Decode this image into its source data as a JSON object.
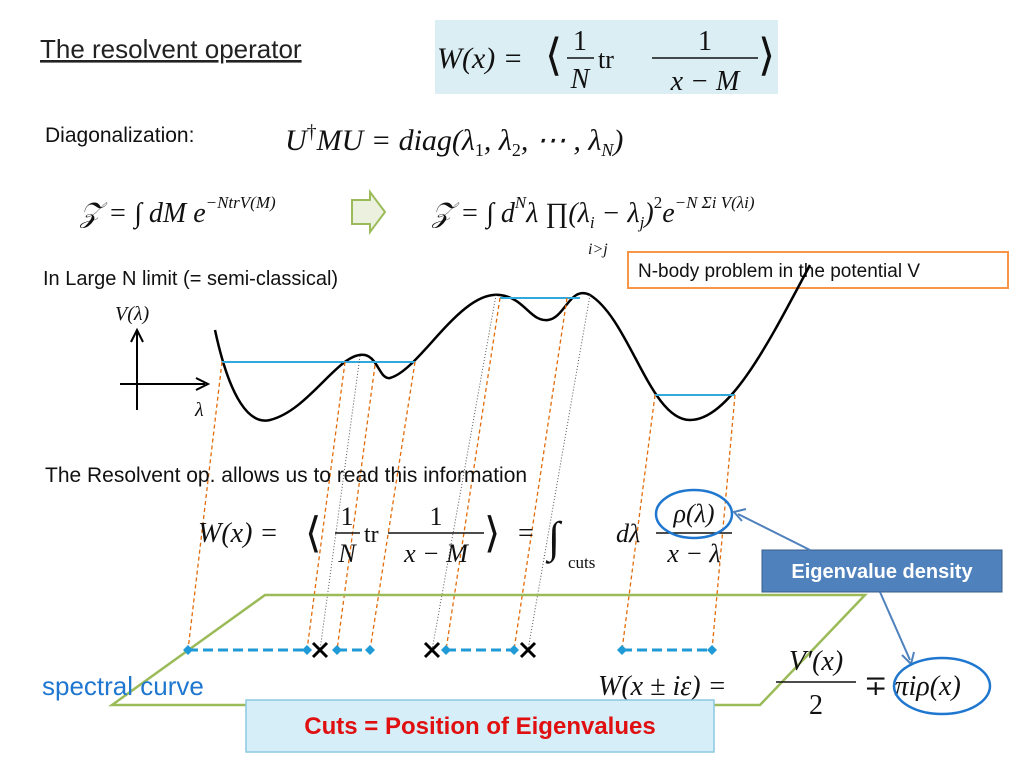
{
  "title": "The resolvent operator",
  "top_formula": {
    "lhs": "W(x) =",
    "open": "⟨",
    "n1": "1",
    "d1": "N",
    "tr": "tr",
    "n2": "1",
    "d2": "x − M",
    "close": "⟩"
  },
  "diagonalization": {
    "label": "Diagonalization:",
    "a": "U",
    "dagger": "†",
    "b": "MU = diag(λ",
    "s1": "1",
    "c": ", λ",
    "s2": "2",
    "d": ", ⋯ , λ",
    "sN": "N",
    "e": ")"
  },
  "partition_left": {
    "a": "𝒵 = ∫ dM e",
    "sup": "−NtrV(M)"
  },
  "partition_right": {
    "a": "𝒵 = ∫ d",
    "supN": "N",
    "b": "λ ∏(λ",
    "si": "i",
    "c": " − λ",
    "sj": "j",
    "d": ")",
    "sup2": "2",
    "e": "e",
    "supexp": "−N Σi V(λi)",
    "under": "i>j"
  },
  "large_n": "In Large N limit (= semi-classical)",
  "nbody": "N-body problem in the potential V",
  "axis": {
    "y": "V(λ)",
    "x": "λ"
  },
  "read_info": "The Resolvent op. allows us to read this information",
  "mid_formula": {
    "lhs": "W(x) =",
    "open": "⟨",
    "n1": "1",
    "d1": "N",
    "tr": "tr",
    "n2": "1",
    "d2": "x − M",
    "close": "⟩",
    "eq": "=",
    "int": "∫",
    "cuts": "cuts",
    "dl": "dλ",
    "n3": "ρ(λ)",
    "d3": "x − λ"
  },
  "eigen_density": "Eigenvalue density",
  "spectral_curve": "spectral curve",
  "bottom_formula": {
    "lhs": "W(x ± iε) =",
    "num": "V′(x)",
    "den": "2",
    "rest": "∓ πiρ(x)"
  },
  "cuts_label": "Cuts  = Position of Eigenvalues"
}
